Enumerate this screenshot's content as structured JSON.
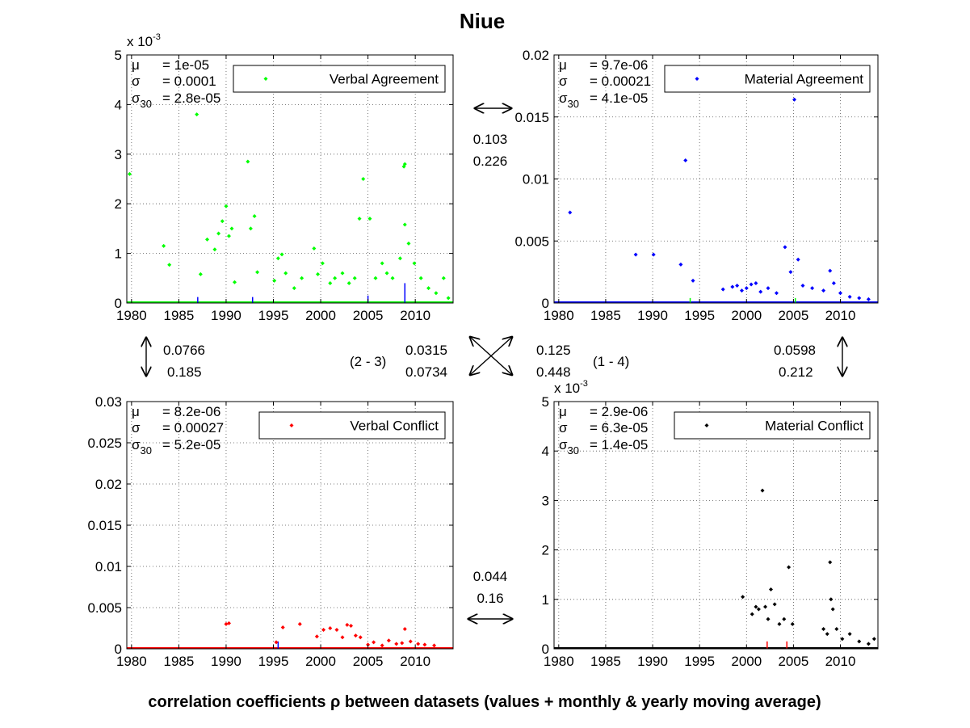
{
  "figure": {
    "title": "Niue",
    "footer": "correlation coefficients ρ between datasets (values + monthly & yearly moving average)"
  },
  "correlations": {
    "top": {
      "a": "0.103",
      "b": "0.226"
    },
    "bottom": {
      "a": "0.044",
      "b": "0.16"
    },
    "left": {
      "a": "0.0766",
      "b": "0.185"
    },
    "right": {
      "a": "0.0598",
      "b": "0.212"
    },
    "diag_23": {
      "label": "(2 - 3)",
      "a": "0.0315",
      "b": "0.0734"
    },
    "diag_14": {
      "label": "(1 - 4)",
      "a": "0.125",
      "b": "0.448"
    }
  },
  "chart_data": [
    {
      "type": "scatter",
      "title": "",
      "legend": "Verbal Agreement",
      "legend_placement": "top-right",
      "color": "#00ff00",
      "secondary_color": "#0000ff",
      "grid": true,
      "xlim": [
        1979.5,
        2014
      ],
      "ylim": [
        0,
        0.005
      ],
      "scale_label": "x 10-3",
      "scale_factor": 1000,
      "xticks": [
        1980,
        1985,
        1990,
        1995,
        2000,
        2005,
        2010
      ],
      "yticks": [
        0,
        1,
        2,
        3,
        4,
        5
      ],
      "stats": {
        "mu": "= 1e-05",
        "sigma": "= 0.0001",
        "sigma30": "= 2.8e-05"
      },
      "x": [
        1979.8,
        1983.4,
        1984.0,
        1986.9,
        1987.3,
        1988.0,
        1988.8,
        1989.2,
        1989.6,
        1990.0,
        1990.3,
        1990.6,
        1990.9,
        1992.3,
        1992.6,
        1993.0,
        1993.3,
        1995.1,
        1995.5,
        1995.9,
        1996.3,
        1997.2,
        1998.0,
        1999.3,
        1999.7,
        2000.2,
        2001.0,
        2001.5,
        2002.3,
        2003.0,
        2003.6,
        2004.1,
        2004.5,
        2005.2,
        2005.8,
        2006.5,
        2007.0,
        2007.6,
        2008.4,
        2008.8,
        2008.9,
        2008.9,
        2009.3,
        2009.9,
        2010.6,
        2011.4,
        2012.2,
        2013.0,
        2013.5
      ],
      "y": [
        0.0026,
        0.00115,
        0.00077,
        0.0038,
        0.00058,
        0.00128,
        0.00108,
        0.0014,
        0.00165,
        0.00195,
        0.00135,
        0.0015,
        0.00042,
        0.00285,
        0.0015,
        0.00175,
        0.00062,
        0.00045,
        0.0009,
        0.00098,
        0.0006,
        0.0003,
        0.0005,
        0.0011,
        0.00058,
        0.0008,
        0.0004,
        0.0005,
        0.0006,
        0.0004,
        0.0005,
        0.0017,
        0.0025,
        0.0017,
        0.0005,
        0.0008,
        0.0006,
        0.0005,
        0.0009,
        0.00275,
        0.0028,
        0.00158,
        0.0012,
        0.0008,
        0.0005,
        0.0003,
        0.0002,
        0.0005,
        0.0001
      ],
      "secondary_spikes_x": [
        1987.0,
        1992.8,
        2005.0,
        2008.9
      ],
      "secondary_spikes_y": [
        0.00012,
        0.00012,
        0.00015,
        0.0004
      ]
    },
    {
      "type": "scatter",
      "title": "",
      "legend": "Material Agreement",
      "legend_placement": "top-right",
      "color": "#0000ff",
      "secondary_color": "#00ff00",
      "grid": true,
      "xlim": [
        1979.5,
        2014
      ],
      "ylim": [
        0,
        0.02
      ],
      "scale_label": "",
      "scale_factor": 1,
      "xticks": [
        1980,
        1985,
        1990,
        1995,
        2000,
        2005,
        2010
      ],
      "yticks": [
        0,
        0.005,
        0.01,
        0.015,
        0.02
      ],
      "stats": {
        "mu": "= 9.7e-06",
        "sigma": "= 0.00021",
        "sigma30": "= 4.1e-05"
      },
      "x": [
        1981.2,
        1988.2,
        1990.1,
        1993.0,
        1993.5,
        1994.3,
        1997.5,
        1998.5,
        1999.0,
        1999.5,
        2000.0,
        2000.5,
        2001.0,
        2001.5,
        2002.3,
        2003.2,
        2004.1,
        2004.7,
        2005.1,
        2005.5,
        2006.0,
        2007.0,
        2008.2,
        2008.9,
        2009.3,
        2010.0,
        2011.0,
        2012.0,
        2013.0
      ],
      "y": [
        0.0073,
        0.0039,
        0.0039,
        0.0031,
        0.0115,
        0.0018,
        0.0011,
        0.0013,
        0.0014,
        0.001,
        0.0012,
        0.0015,
        0.0016,
        0.0009,
        0.0012,
        0.0008,
        0.0045,
        0.0025,
        0.0164,
        0.0035,
        0.0014,
        0.0012,
        0.001,
        0.0026,
        0.0016,
        0.0008,
        0.0005,
        0.0004,
        0.0003
      ],
      "secondary_spikes_x": [
        1994.0,
        2005.2
      ],
      "secondary_spikes_y": [
        0.0004,
        0.0004
      ]
    },
    {
      "type": "scatter",
      "title": "",
      "legend": "Verbal Conflict",
      "legend_placement": "top-right",
      "color": "#ff0000",
      "secondary_color": "#0000ff",
      "grid": true,
      "xlim": [
        1979.5,
        2014
      ],
      "ylim": [
        0,
        0.03
      ],
      "scale_label": "",
      "scale_factor": 1,
      "xticks": [
        1980,
        1985,
        1990,
        1995,
        2000,
        2005,
        2010
      ],
      "yticks": [
        0,
        0.005,
        0.01,
        0.015,
        0.02,
        0.025,
        0.03
      ],
      "stats": {
        "mu": "= 8.2e-06",
        "sigma": "= 0.00027",
        "sigma30": "= 5.2e-05"
      },
      "x": [
        1990.0,
        1990.3,
        1995.3,
        1996.0,
        1997.8,
        1999.6,
        2000.3,
        2001.0,
        2001.7,
        2002.3,
        2002.8,
        2003.2,
        2003.7,
        2004.2,
        2005.0,
        2005.6,
        2006.5,
        2007.2,
        2008.0,
        2008.6,
        2008.9,
        2009.5,
        2010.3,
        2011.0,
        2012.0
      ],
      "y": [
        0.003,
        0.0031,
        0.0008,
        0.0026,
        0.003,
        0.0015,
        0.0023,
        0.0025,
        0.0023,
        0.0014,
        0.0029,
        0.0028,
        0.0016,
        0.0014,
        0.0005,
        0.0008,
        0.0004,
        0.001,
        0.0006,
        0.0007,
        0.0024,
        0.0009,
        0.0006,
        0.0005,
        0.0004
      ],
      "secondary_spikes_x": [
        1995.5
      ],
      "secondary_spikes_y": [
        0.0009
      ]
    },
    {
      "type": "scatter",
      "title": "",
      "legend": "Material Conflict",
      "legend_placement": "top-right",
      "color": "#000000",
      "secondary_color": "#ff0000",
      "grid": true,
      "xlim": [
        1979.5,
        2014
      ],
      "ylim": [
        0,
        0.005
      ],
      "scale_label": "x 10-3",
      "scale_factor": 1000,
      "xticks": [
        1980,
        1985,
        1990,
        1995,
        2000,
        2005,
        2010
      ],
      "yticks": [
        0,
        1,
        2,
        3,
        4,
        5
      ],
      "stats": {
        "mu": "= 2.9e-06",
        "sigma": "= 6.3e-05",
        "sigma30": "= 1.4e-05"
      },
      "x": [
        1999.6,
        2000.6,
        2001.0,
        2001.3,
        2001.7,
        2002.0,
        2002.3,
        2002.6,
        2003.0,
        2003.5,
        2004.0,
        2004.5,
        2004.9,
        2008.2,
        2008.6,
        2008.9,
        2009.0,
        2009.2,
        2009.6,
        2010.2,
        2011.0,
        2012.0,
        2013.0,
        2013.6
      ],
      "y": [
        0.00105,
        0.0007,
        0.00085,
        0.0008,
        0.0032,
        0.00085,
        0.0006,
        0.0012,
        0.0009,
        0.0005,
        0.0006,
        0.00165,
        0.0005,
        0.0004,
        0.0003,
        0.00175,
        0.001,
        0.0008,
        0.0004,
        0.0002,
        0.0003,
        0.00015,
        0.0001,
        0.0002
      ],
      "secondary_spikes_x": [
        2002.2,
        2004.3
      ],
      "secondary_spikes_y": [
        0.00015,
        0.00015
      ]
    }
  ]
}
